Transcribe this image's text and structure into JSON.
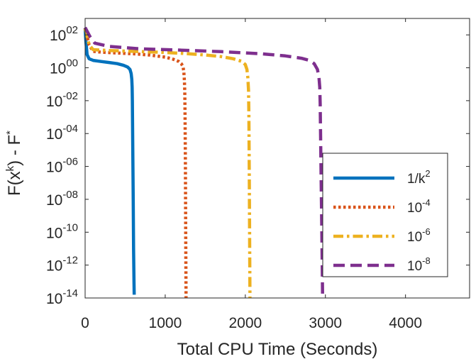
{
  "chart_data": {
    "type": "line",
    "title": "",
    "xlabel": "Total CPU Time (Seconds)",
    "ylabel": {
      "base": "F(x",
      "sup1": "k",
      "mid": ") - F",
      "sup2": "*"
    },
    "xlim": [
      0,
      4800
    ],
    "ylim_exp": [
      -14,
      3
    ],
    "y_scale": "log",
    "grid": false,
    "legend_position": "right",
    "x_ticks": [
      {
        "value": 0,
        "label": "0"
      },
      {
        "value": 1000,
        "label": "1000"
      },
      {
        "value": 2000,
        "label": "2000"
      },
      {
        "value": 3000,
        "label": "3000"
      },
      {
        "value": 4000,
        "label": "4000"
      }
    ],
    "y_ticks": [
      {
        "exp": 2,
        "base": "10",
        "sup": "02"
      },
      {
        "exp": 0,
        "base": "10",
        "sup": "00"
      },
      {
        "exp": -2,
        "base": "10",
        "sup": "-02"
      },
      {
        "exp": -4,
        "base": "10",
        "sup": "-04"
      },
      {
        "exp": -6,
        "base": "10",
        "sup": "-06"
      },
      {
        "exp": -8,
        "base": "10",
        "sup": "-08"
      },
      {
        "exp": -10,
        "base": "10",
        "sup": "-10"
      },
      {
        "exp": -12,
        "base": "10",
        "sup": "-12"
      },
      {
        "exp": -14,
        "base": "10",
        "sup": "-14"
      }
    ],
    "series": [
      {
        "name": "1/k^2",
        "label_base": "1/k",
        "label_sup": "2",
        "color": "#0072BD",
        "dash": "solid",
        "points": [
          [
            0,
            2.4
          ],
          [
            10,
            1.6
          ],
          [
            25,
            0.8
          ],
          [
            50,
            0.55
          ],
          [
            100,
            0.45
          ],
          [
            200,
            0.38
          ],
          [
            300,
            0.32
          ],
          [
            400,
            0.25
          ],
          [
            480,
            0.15
          ],
          [
            530,
            0.05
          ],
          [
            560,
            -0.1
          ],
          [
            575,
            -0.35
          ],
          [
            583,
            -0.7
          ],
          [
            587,
            -1.2
          ],
          [
            590,
            -2.0
          ],
          [
            592,
            -3
          ],
          [
            595,
            -5
          ],
          [
            600,
            -8
          ],
          [
            605,
            -11
          ],
          [
            610,
            -13
          ],
          [
            613,
            -13.8
          ]
        ]
      },
      {
        "name": "10^-4",
        "label_base": "10",
        "label_sup": "-4",
        "color": "#D95319",
        "dash": "dotted",
        "points": [
          [
            0,
            2.4
          ],
          [
            50,
            1.4
          ],
          [
            100,
            1.0
          ],
          [
            200,
            0.95
          ],
          [
            400,
            0.9
          ],
          [
            600,
            0.85
          ],
          [
            800,
            0.78
          ],
          [
            1000,
            0.65
          ],
          [
            1100,
            0.52
          ],
          [
            1170,
            0.38
          ],
          [
            1200,
            0.25
          ],
          [
            1220,
            0.1
          ],
          [
            1232,
            -0.2
          ],
          [
            1240,
            -0.8
          ],
          [
            1244,
            -1.5
          ],
          [
            1248,
            -3
          ],
          [
            1252,
            -6
          ],
          [
            1256,
            -10
          ],
          [
            1260,
            -14
          ]
        ]
      },
      {
        "name": "10^-6",
        "label_base": "10",
        "label_sup": "-6",
        "color": "#EDB120",
        "dash": "dashdot",
        "points": [
          [
            0,
            2.4
          ],
          [
            50,
            1.4
          ],
          [
            100,
            1.1
          ],
          [
            300,
            1.05
          ],
          [
            600,
            1.0
          ],
          [
            900,
            0.95
          ],
          [
            1200,
            0.88
          ],
          [
            1500,
            0.78
          ],
          [
            1700,
            0.68
          ],
          [
            1850,
            0.55
          ],
          [
            1950,
            0.4
          ],
          [
            2000,
            0.2
          ],
          [
            2020,
            -0.1
          ],
          [
            2032,
            -0.6
          ],
          [
            2040,
            -1.4
          ],
          [
            2045,
            -3
          ],
          [
            2050,
            -7
          ],
          [
            2055,
            -11
          ],
          [
            2058,
            -14
          ]
        ]
      },
      {
        "name": "10^-8",
        "label_base": "10",
        "label_sup": "-8",
        "color": "#7E2F8E",
        "dash": "dashed",
        "points": [
          [
            0,
            2.45
          ],
          [
            60,
            1.9
          ],
          [
            120,
            1.5
          ],
          [
            300,
            1.3
          ],
          [
            700,
            1.15
          ],
          [
            1200,
            1.07
          ],
          [
            1700,
            0.98
          ],
          [
            2200,
            0.85
          ],
          [
            2500,
            0.72
          ],
          [
            2700,
            0.58
          ],
          [
            2800,
            0.45
          ],
          [
            2860,
            0.25
          ],
          [
            2900,
            -0.1
          ],
          [
            2920,
            -0.6
          ],
          [
            2930,
            -1.2
          ],
          [
            2935,
            -2.2
          ],
          [
            2945,
            -6
          ],
          [
            2955,
            -10
          ],
          [
            2965,
            -14
          ]
        ]
      }
    ]
  }
}
